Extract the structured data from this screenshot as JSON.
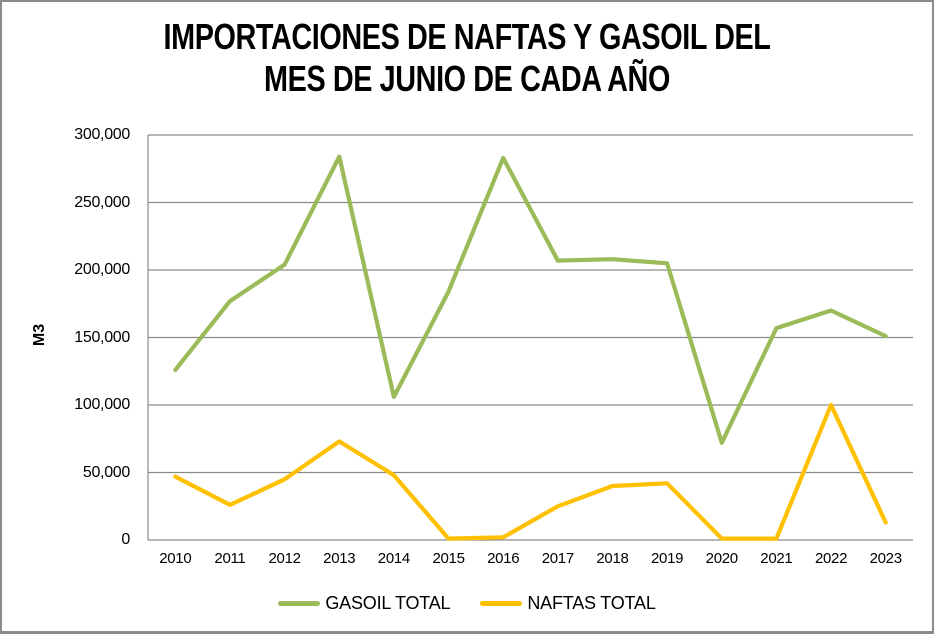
{
  "chart": {
    "title_line1": "IMPORTACIONES DE NAFTAS Y GASOIL DEL",
    "title_line2": "MES DE JUNIO DE CADA AÑO"
  },
  "chart_data": {
    "type": "line",
    "title": "IMPORTACIONES DE NAFTAS Y GASOIL DEL MES DE JUNIO DE CADA AÑO",
    "xlabel": "",
    "ylabel": "M3",
    "ylim": [
      0,
      300000
    ],
    "ytick_labels": [
      "0",
      "50,000",
      "100,000",
      "150,000",
      "200,000",
      "250,000",
      "300,000"
    ],
    "grid": true,
    "legend_position": "bottom",
    "categories": [
      "2010",
      "2011",
      "2012",
      "2013",
      "2014",
      "2015",
      "2016",
      "2017",
      "2018",
      "2019",
      "2020",
      "2021",
      "2022",
      "2023"
    ],
    "series": [
      {
        "name": "GASOIL TOTAL",
        "color": "#9BBB59",
        "values": [
          126000,
          177000,
          204000,
          284000,
          106000,
          184000,
          283000,
          207000,
          208000,
          205000,
          72000,
          157000,
          170000,
          151000
        ]
      },
      {
        "name": "NAFTAS TOTAL",
        "color": "#FFC000",
        "values": [
          47000,
          26000,
          45000,
          73000,
          48000,
          1000,
          2000,
          25000,
          40000,
          42000,
          1000,
          1000,
          100000,
          13000
        ]
      }
    ]
  },
  "colors": {
    "gridline": "#8b8b8b",
    "axis": "#8b8b8b",
    "frame_border": "#8c8c8c",
    "text": "#000000"
  }
}
